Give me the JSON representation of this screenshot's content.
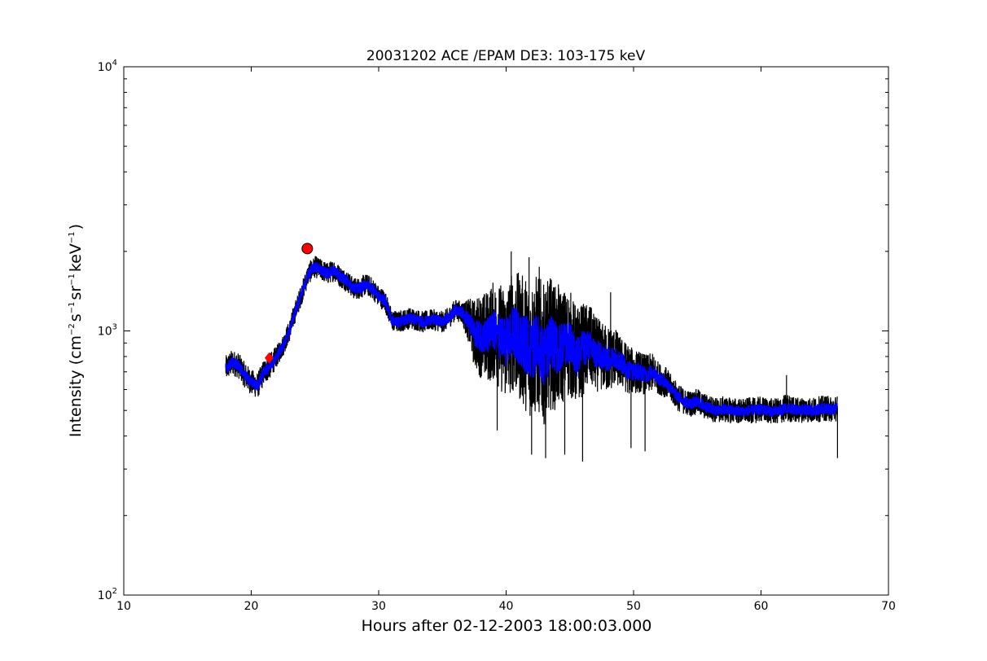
{
  "chart_data": {
    "type": "line",
    "title": "20031202 ACE /EPAM DE3: 103-175 keV",
    "xlabel": "Hours after 02-12-2003 18:00:03.000",
    "ylabel": {
      "prefix": "Intensity (cm",
      "exp1": "−2",
      "mid1": "s",
      "exp2": "−1",
      "mid2": "sr",
      "exp3": "−1",
      "mid3": "keV",
      "exp4": "−1",
      "suffix": ")"
    },
    "xlim": [
      10,
      70
    ],
    "ylim": [
      100,
      10000
    ],
    "yscale": "log",
    "xticks": [
      10,
      20,
      30,
      40,
      50,
      60,
      70
    ],
    "xtick_labels": [
      "10",
      "20",
      "30",
      "40",
      "50",
      "60",
      "70"
    ],
    "yticks": [
      100,
      1000,
      10000
    ],
    "ytick_labels": [
      {
        "base": "10",
        "exp": "2"
      },
      {
        "base": "10",
        "exp": "3"
      },
      {
        "base": "10",
        "exp": "4"
      }
    ],
    "grid": false,
    "series": [
      {
        "color": "#000000",
        "x": [
          18.0,
          18.5,
          19.0,
          19.5,
          20.0,
          20.5,
          21.0,
          21.5,
          22.0,
          22.5,
          23.0,
          23.5,
          24.0,
          24.5,
          25.0,
          25.5,
          26.0,
          26.5,
          27.0,
          27.5,
          28.0,
          28.5,
          29.0,
          29.5,
          30.0,
          30.5,
          31.0,
          31.5,
          32.0,
          32.5,
          33.0,
          33.5,
          34.0,
          34.5,
          35.0,
          35.5,
          36.0,
          36.5,
          37.0,
          37.5,
          38.0,
          38.5,
          39.0,
          39.5,
          40.0,
          40.5,
          41.0,
          41.5,
          42.0,
          42.5,
          43.0,
          43.5,
          44.0,
          44.5,
          45.0,
          45.5,
          46.0,
          46.5,
          47.0,
          47.5,
          48.0,
          48.5,
          49.0,
          49.5,
          50.0,
          50.5,
          51.0,
          51.5,
          52.0,
          52.5,
          53.0,
          53.5,
          54.0,
          54.5,
          55.0,
          55.5,
          56.0,
          56.5,
          57.0,
          57.5,
          58.0,
          58.5,
          59.0,
          59.5,
          60.0,
          60.5,
          61.0,
          61.5,
          62.0,
          62.5,
          63.0,
          63.5,
          64.0,
          64.5,
          65.0,
          65.5,
          66.0
        ],
        "values": [
          720,
          760,
          740,
          680,
          640,
          620,
          700,
          740,
          800,
          880,
          1000,
          1200,
          1400,
          1650,
          1750,
          1700,
          1650,
          1700,
          1600,
          1550,
          1450,
          1450,
          1500,
          1450,
          1350,
          1300,
          1100,
          1080,
          1100,
          1120,
          1100,
          1080,
          1100,
          1100,
          1080,
          1120,
          1200,
          1180,
          1100,
          980,
          960,
          950,
          1000,
          950,
          900,
          1000,
          950,
          900,
          850,
          900,
          800,
          900,
          850,
          880,
          900,
          800,
          850,
          880,
          820,
          800,
          780,
          800,
          760,
          720,
          700,
          700,
          680,
          700,
          660,
          640,
          600,
          560,
          540,
          530,
          540,
          520,
          510,
          500,
          505,
          500,
          500,
          495,
          500,
          500,
          505,
          500,
          495,
          500,
          510,
          505,
          500,
          505,
          500,
          505,
          510,
          505,
          510
        ],
        "spread": [
          1.12,
          1.12,
          1.12,
          1.12,
          1.12,
          1.12,
          1.12,
          1.12,
          1.1,
          1.1,
          1.1,
          1.1,
          1.1,
          1.1,
          1.1,
          1.1,
          1.1,
          1.1,
          1.1,
          1.1,
          1.1,
          1.1,
          1.1,
          1.1,
          1.1,
          1.1,
          1.1,
          1.1,
          1.1,
          1.1,
          1.1,
          1.1,
          1.1,
          1.1,
          1.1,
          1.1,
          1.1,
          1.1,
          1.2,
          1.35,
          1.45,
          1.5,
          1.55,
          1.6,
          1.65,
          1.7,
          1.75,
          1.8,
          1.85,
          1.85,
          1.85,
          1.8,
          1.7,
          1.65,
          1.6,
          1.55,
          1.5,
          1.45,
          1.4,
          1.35,
          1.35,
          1.3,
          1.25,
          1.25,
          1.22,
          1.2,
          1.2,
          1.18,
          1.15,
          1.15,
          1.13,
          1.13,
          1.12,
          1.12,
          1.12,
          1.12,
          1.12,
          1.12,
          1.12,
          1.12,
          1.12,
          1.12,
          1.12,
          1.12,
          1.12,
          1.12,
          1.12,
          1.12,
          1.14,
          1.12,
          1.12,
          1.12,
          1.12,
          1.12,
          1.12,
          1.12,
          1.12
        ]
      },
      {
        "color": "#0000ff",
        "x": [
          18.0,
          18.5,
          19.0,
          19.5,
          20.0,
          20.5,
          21.0,
          21.5,
          22.0,
          22.5,
          23.0,
          23.5,
          24.0,
          24.5,
          25.0,
          25.5,
          26.0,
          26.5,
          27.0,
          27.5,
          28.0,
          28.5,
          29.0,
          29.5,
          30.0,
          30.5,
          31.0,
          31.5,
          32.0,
          32.5,
          33.0,
          33.5,
          34.0,
          34.5,
          35.0,
          35.5,
          36.0,
          36.5,
          37.0,
          37.5,
          38.0,
          38.5,
          39.0,
          39.5,
          40.0,
          40.5,
          41.0,
          41.5,
          42.0,
          42.5,
          43.0,
          43.5,
          44.0,
          44.5,
          45.0,
          45.5,
          46.0,
          46.5,
          47.0,
          47.5,
          48.0,
          48.5,
          49.0,
          49.5,
          50.0,
          50.5,
          51.0,
          51.5,
          52.0,
          52.5,
          53.0,
          53.5,
          54.0,
          54.5,
          55.0,
          55.5,
          56.0,
          56.5,
          57.0,
          57.5,
          58.0,
          58.5,
          59.0,
          59.5,
          60.0,
          60.5,
          61.0,
          61.5,
          62.0,
          62.5,
          63.0,
          63.5,
          64.0,
          64.5,
          65.0,
          65.5,
          66.0
        ],
        "values": [
          720,
          760,
          740,
          680,
          640,
          620,
          700,
          740,
          800,
          880,
          1000,
          1200,
          1400,
          1650,
          1750,
          1700,
          1650,
          1700,
          1600,
          1550,
          1450,
          1450,
          1500,
          1450,
          1350,
          1300,
          1100,
          1080,
          1100,
          1120,
          1100,
          1080,
          1100,
          1100,
          1080,
          1120,
          1200,
          1180,
          1100,
          980,
          960,
          950,
          1000,
          950,
          900,
          1000,
          950,
          900,
          850,
          900,
          800,
          900,
          850,
          880,
          900,
          800,
          850,
          880,
          820,
          800,
          780,
          800,
          760,
          720,
          700,
          700,
          680,
          700,
          660,
          640,
          600,
          560,
          540,
          530,
          540,
          520,
          510,
          500,
          505,
          500,
          500,
          495,
          500,
          500,
          505,
          500,
          495,
          500,
          510,
          505,
          500,
          505,
          500,
          505,
          510,
          505,
          510
        ],
        "spread": [
          1.05,
          1.05,
          1.05,
          1.05,
          1.05,
          1.05,
          1.05,
          1.05,
          1.05,
          1.05,
          1.05,
          1.05,
          1.05,
          1.05,
          1.05,
          1.05,
          1.05,
          1.05,
          1.05,
          1.05,
          1.05,
          1.05,
          1.05,
          1.05,
          1.05,
          1.05,
          1.05,
          1.05,
          1.05,
          1.05,
          1.05,
          1.05,
          1.05,
          1.05,
          1.05,
          1.05,
          1.05,
          1.05,
          1.08,
          1.12,
          1.15,
          1.18,
          1.2,
          1.22,
          1.25,
          1.25,
          1.28,
          1.3,
          1.3,
          1.3,
          1.3,
          1.28,
          1.25,
          1.22,
          1.2,
          1.2,
          1.18,
          1.15,
          1.15,
          1.12,
          1.12,
          1.1,
          1.1,
          1.1,
          1.08,
          1.08,
          1.07,
          1.07,
          1.06,
          1.06,
          1.05,
          1.05,
          1.05,
          1.05,
          1.05,
          1.05,
          1.05,
          1.05,
          1.05,
          1.05,
          1.05,
          1.05,
          1.05,
          1.05,
          1.05,
          1.05,
          1.05,
          1.05,
          1.05,
          1.05,
          1.05,
          1.05,
          1.05,
          1.05,
          1.05,
          1.05,
          1.05
        ]
      }
    ],
    "spikes": [
      {
        "x": 40.4,
        "value": 2000
      },
      {
        "x": 41.8,
        "value": 1900
      },
      {
        "x": 42.6,
        "value": 1750
      },
      {
        "x": 44.1,
        "value": 1500
      },
      {
        "x": 46.0,
        "value": 320
      },
      {
        "x": 43.1,
        "value": 330
      },
      {
        "x": 42.0,
        "value": 340
      },
      {
        "x": 44.6,
        "value": 340
      },
      {
        "x": 48.2,
        "value": 1400
      },
      {
        "x": 49.8,
        "value": 360
      },
      {
        "x": 50.9,
        "value": 350
      },
      {
        "x": 39.3,
        "value": 420
      },
      {
        "x": 66.0,
        "value": 330
      },
      {
        "x": 62.0,
        "value": 680
      }
    ],
    "markers": [
      {
        "x": 24.4,
        "value": 2050,
        "shape": "circle",
        "color": "#ff0000"
      },
      {
        "x": 21.4,
        "value": 790,
        "shape": "diamond",
        "color": "#ff0000"
      }
    ]
  }
}
